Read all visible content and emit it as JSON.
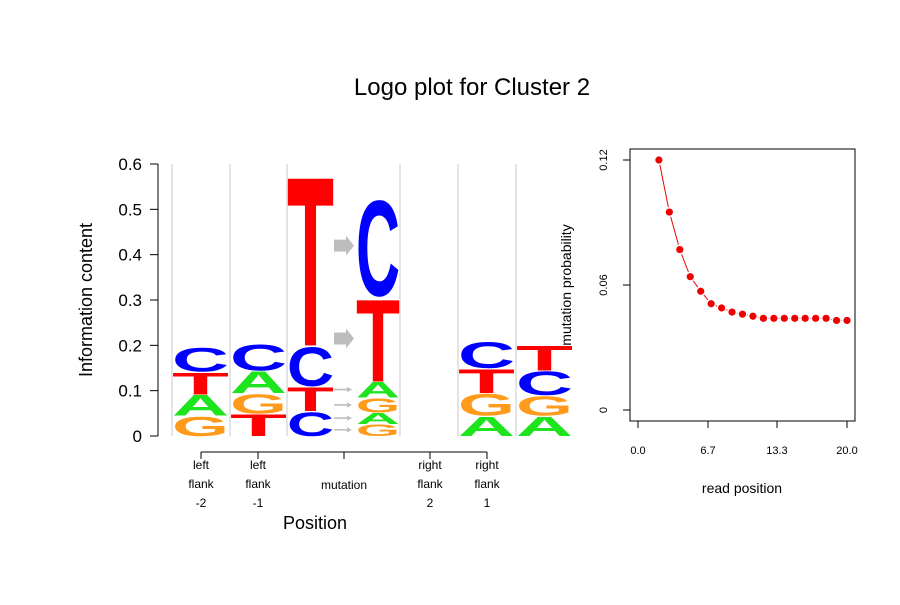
{
  "title": "Logo plot for Cluster 2",
  "colors": {
    "A": "#1ee41e",
    "C": "#0000ff",
    "G": "#ff9a1a",
    "T": "#ff0000",
    "arrow": "#bdbdbd",
    "points": "#ee0000",
    "axis": "#000000",
    "grid": "#c8c8c8"
  },
  "chart_data": [
    {
      "type": "logo",
      "ylabel": "Information content",
      "xlabel": "Position",
      "ylim": [
        0,
        0.6
      ],
      "yticks": [
        "0",
        "0.1",
        "0.2",
        "0.3",
        "0.4",
        "0.5",
        "0.6"
      ],
      "yticks_values": [
        0,
        0.1,
        0.2,
        0.3,
        0.4,
        0.5,
        0.6
      ],
      "positions": [
        {
          "label": [
            "left",
            "flank",
            "-2"
          ],
          "letters": [
            {
              "l": "G",
              "h": 0.045
            },
            {
              "l": "A",
              "h": 0.047
            },
            {
              "l": "T",
              "h": 0.05
            },
            {
              "l": "C",
              "h": 0.055
            }
          ]
        },
        {
          "label": [
            "left",
            "flank",
            "-1"
          ],
          "letters": [
            {
              "l": "T",
              "h": 0.05
            },
            {
              "l": "G",
              "h": 0.045
            },
            {
              "l": "A",
              "h": 0.05
            },
            {
              "l": "C",
              "h": 0.06
            }
          ]
        },
        {
          "label": [
            "mutation"
          ],
          "type": "mutation",
          "from": [
            {
              "l": "C",
              "h": 0.055
            },
            {
              "l": "T",
              "h": 0.055
            },
            {
              "l": "C",
              "h": 0.09
            },
            {
              "l": "T",
              "h": 0.39
            }
          ],
          "to": [
            {
              "l": "G",
              "h": 0.027
            },
            {
              "l": "A",
              "h": 0.025
            },
            {
              "l": "G",
              "h": 0.033
            },
            {
              "l": "A",
              "h": 0.035
            },
            {
              "l": "T",
              "h": 0.19
            },
            {
              "l": "C",
              "h": 0.22
            }
          ]
        },
        {
          "label": [
            "right",
            "flank",
            "2"
          ],
          "letters": [
            {
              "l": "A",
              "h": 0.045
            },
            {
              "l": "G",
              "h": 0.05
            },
            {
              "l": "T",
              "h": 0.055
            },
            {
              "l": "C",
              "h": 0.06
            }
          ]
        },
        {
          "label": [
            "right",
            "flank",
            "1"
          ],
          "letters": [
            {
              "l": "A",
              "h": 0.045
            },
            {
              "l": "G",
              "h": 0.045
            },
            {
              "l": "C",
              "h": 0.055
            },
            {
              "l": "T",
              "h": 0.057
            }
          ]
        }
      ]
    },
    {
      "type": "scatter",
      "xlabel": "read position",
      "ylabel": "mutation probability",
      "xlim": [
        0,
        20
      ],
      "ylim": [
        0,
        0.12
      ],
      "xticks": [
        "0.0",
        "6.7",
        "13.3",
        "20.0"
      ],
      "xticks_values": [
        0,
        6.7,
        13.3,
        20
      ],
      "yticks": [
        "0",
        "0.06",
        "0.12"
      ],
      "yticks_values": [
        0,
        0.06,
        0.12
      ],
      "x": [
        2,
        3,
        4,
        5,
        6,
        7,
        8,
        9,
        10,
        11,
        12,
        13,
        14,
        15,
        16,
        17,
        18,
        19,
        20
      ],
      "y": [
        0.12,
        0.095,
        0.077,
        0.064,
        0.057,
        0.051,
        0.049,
        0.047,
        0.046,
        0.045,
        0.044,
        0.044,
        0.044,
        0.044,
        0.044,
        0.044,
        0.044,
        0.043,
        0.043
      ]
    }
  ]
}
